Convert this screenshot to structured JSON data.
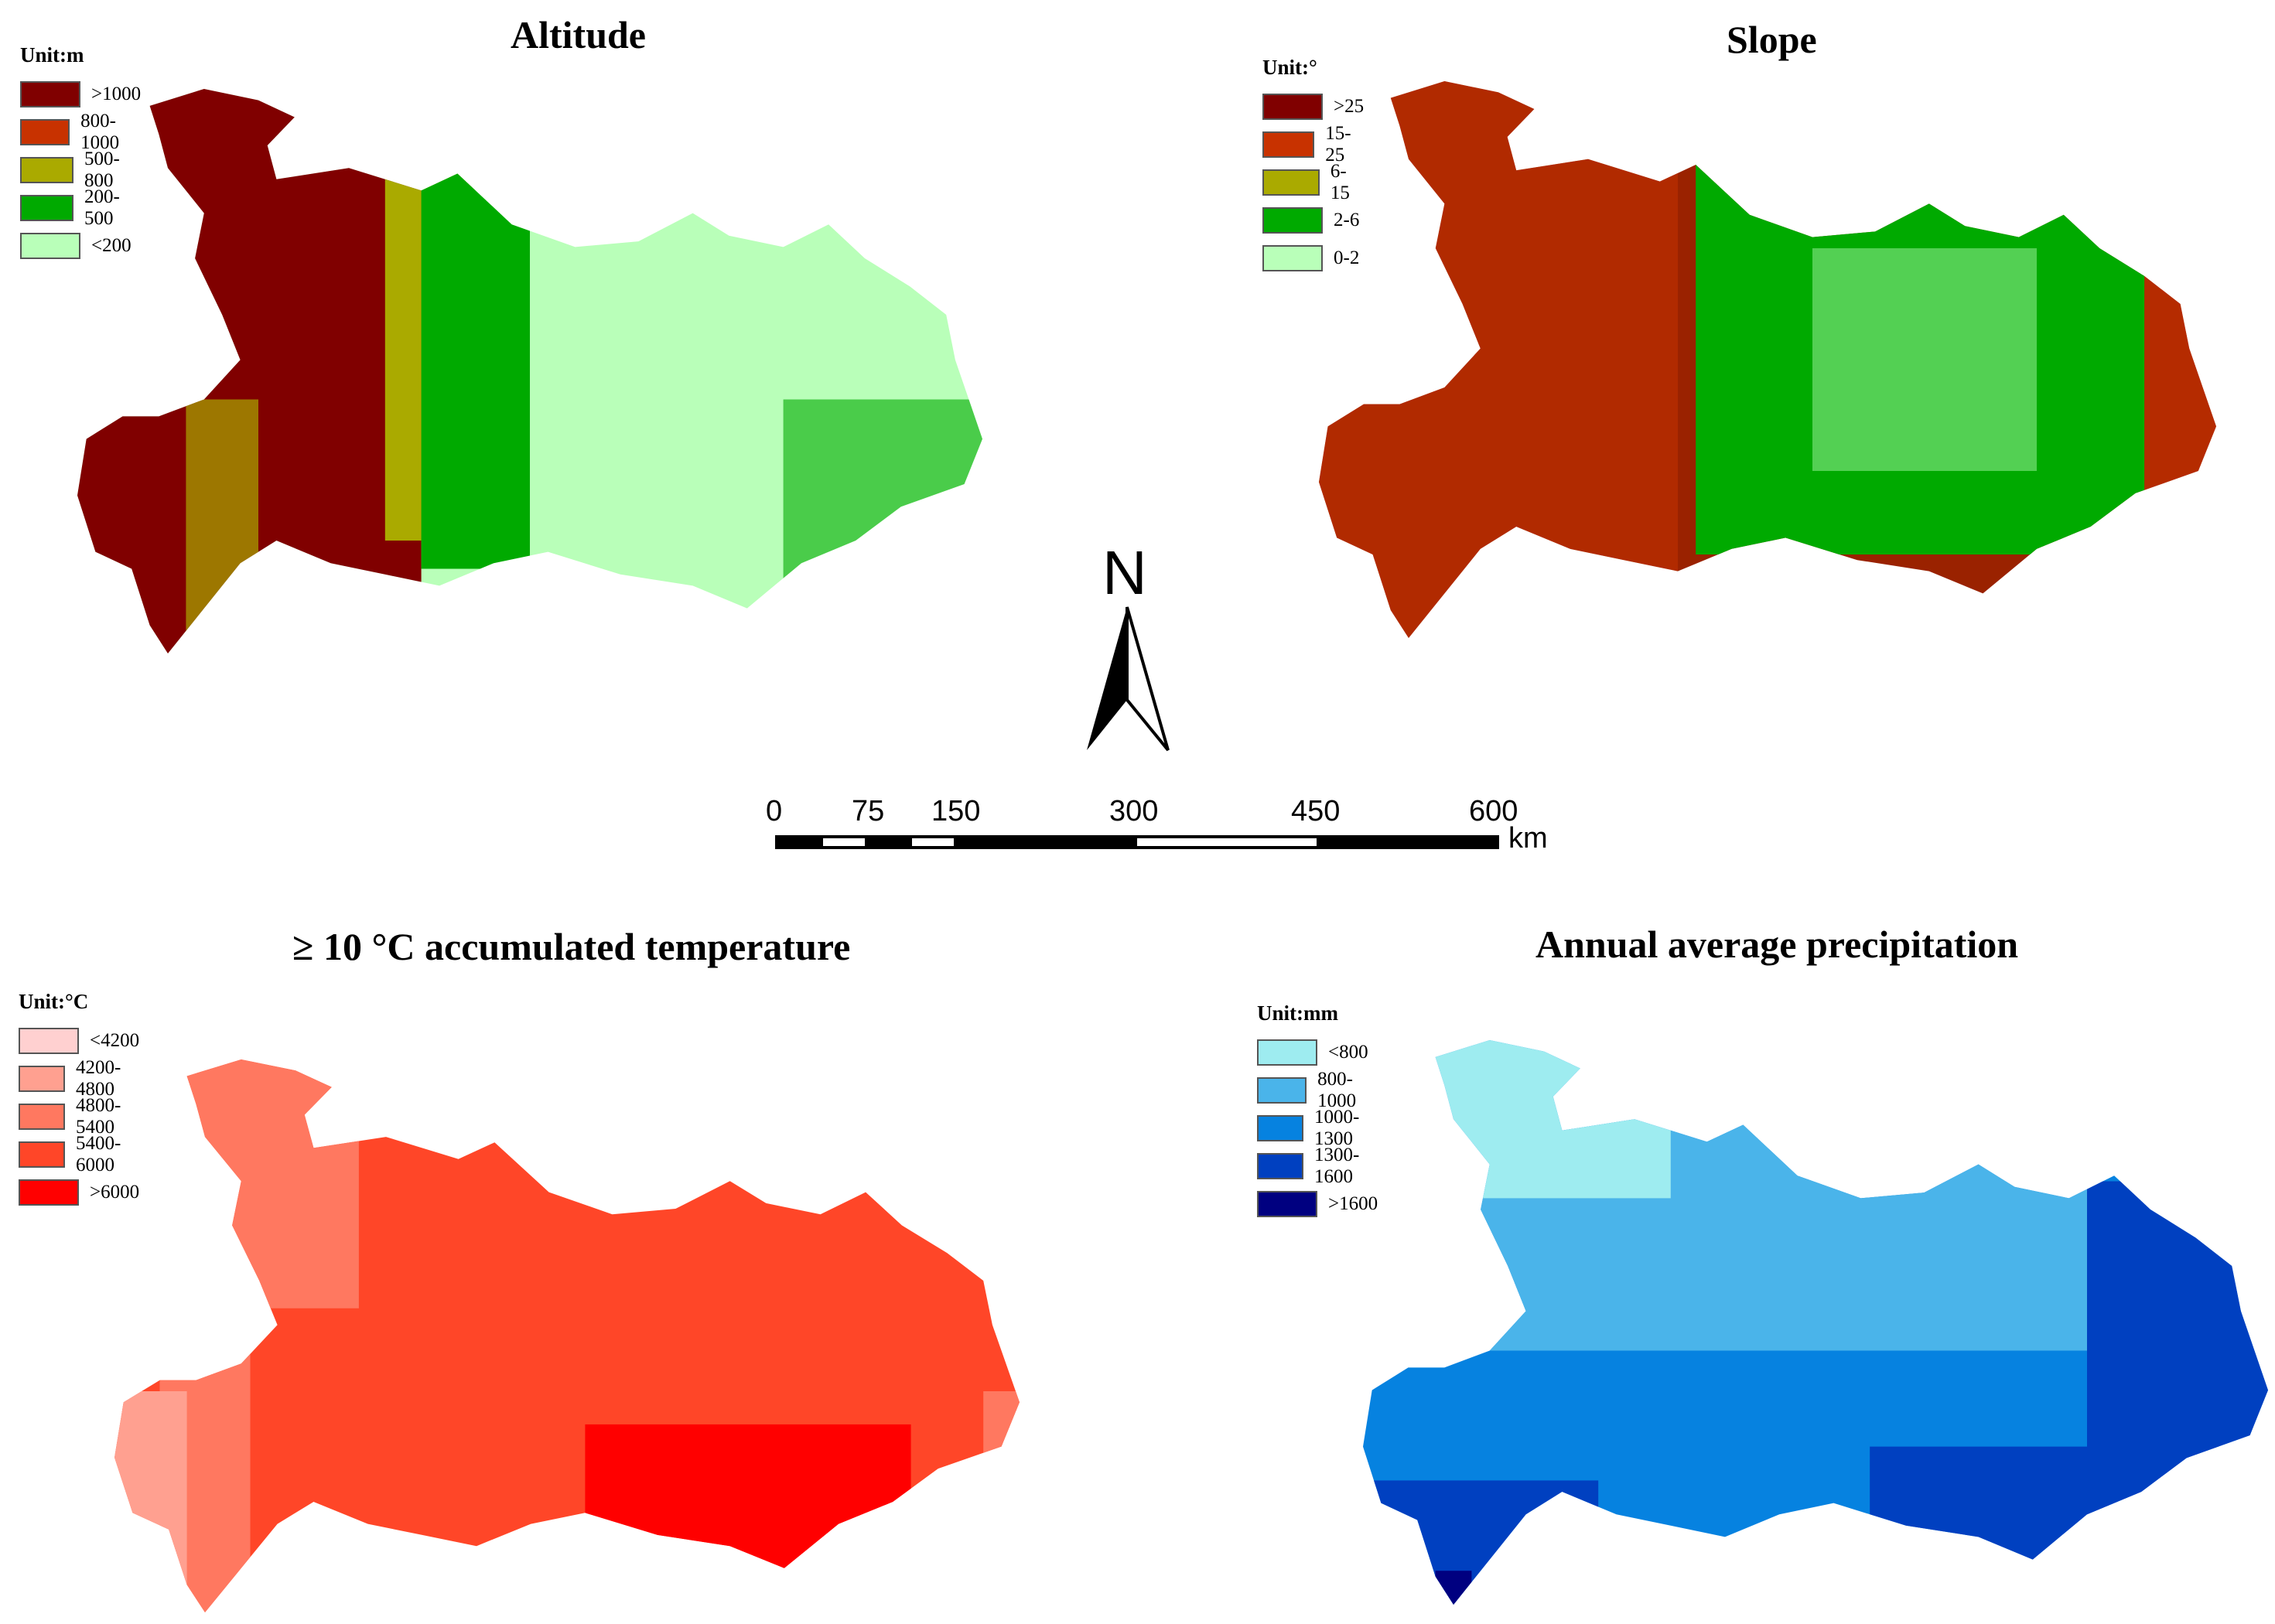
{
  "panels": {
    "altitude": {
      "title": "Altitude",
      "unit": "Unit:m",
      "legend": [
        {
          "label": ">1000",
          "color": "#800000"
        },
        {
          "label": "800-1000",
          "color": "#c83200"
        },
        {
          "label": "500-800",
          "color": "#aaaa00"
        },
        {
          "label": "200-500",
          "color": "#00aa00"
        },
        {
          "label": "<200",
          "color": "#b9ffb9"
        }
      ]
    },
    "slope": {
      "title": "Slope",
      "unit": "Unit:°",
      "legend": [
        {
          "label": ">25",
          "color": "#800000"
        },
        {
          "label": "15-25",
          "color": "#c83200"
        },
        {
          "label": "6-15",
          "color": "#aaaa00"
        },
        {
          "label": "2-6",
          "color": "#00aa00"
        },
        {
          "label": "0-2",
          "color": "#b9ffb9"
        }
      ]
    },
    "temperature": {
      "title": "≥ 10 °C accumulated temperature",
      "unit": "Unit:°C",
      "legend": [
        {
          "label": "<4200",
          "color": "#ffd0d0"
        },
        {
          "label": "4200-4800",
          "color": "#ffa090"
        },
        {
          "label": "4800-5400",
          "color": "#ff7860"
        },
        {
          "label": "5400-6000",
          "color": "#ff4628"
        },
        {
          "label": ">6000",
          "color": "#ff0000"
        }
      ]
    },
    "precipitation": {
      "title": "Annual average precipitation",
      "unit": "Unit:mm",
      "legend": [
        {
          "label": "<800",
          "color": "#9eecf0"
        },
        {
          "label": "800-1000",
          "color": "#4ab4ea"
        },
        {
          "label": "1000-1300",
          "color": "#0682e0"
        },
        {
          "label": "1300-1600",
          "color": "#0040c0"
        },
        {
          "label": ">1600",
          "color": "#000080"
        }
      ]
    }
  },
  "north_arrow": {
    "label": "N"
  },
  "scale_bar": {
    "ticks": [
      "0",
      "75",
      "150",
      "300",
      "450",
      "600"
    ],
    "unit": "km"
  }
}
